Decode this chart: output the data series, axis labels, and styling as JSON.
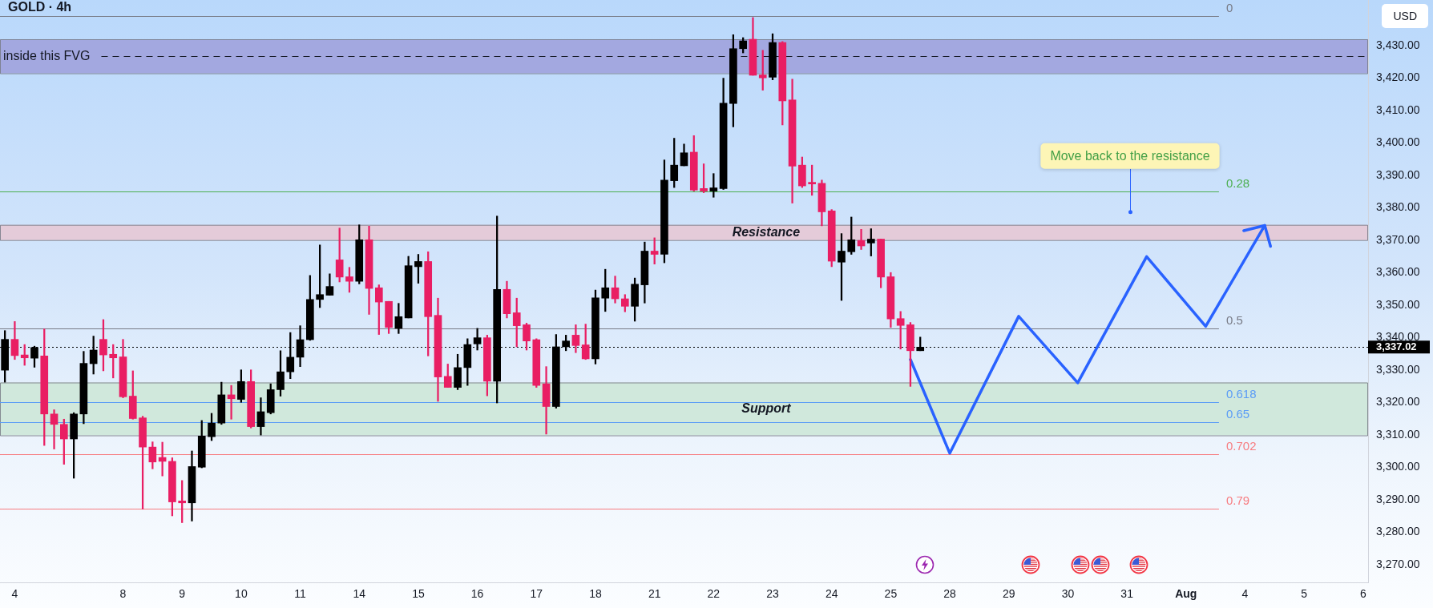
{
  "chart_data": {
    "type": "candlestick",
    "title": "GOLD · 4h",
    "ylabel": "USD",
    "categories": [
      null,
      "4",
      null,
      null,
      null,
      null,
      null,
      null,
      null,
      null,
      null,
      null,
      "8",
      null,
      null,
      null,
      null,
      null,
      "9",
      null,
      null,
      null,
      null,
      null,
      "10",
      null,
      null,
      null,
      null,
      null,
      "11",
      null,
      null,
      null,
      null,
      null,
      "14",
      null,
      null,
      null,
      null,
      null,
      "15",
      null,
      null,
      null,
      null,
      null,
      "16",
      null,
      null,
      null,
      null,
      null,
      "17",
      null,
      null,
      null,
      null,
      null,
      "18",
      null,
      null,
      null,
      null,
      null,
      "21",
      null,
      null,
      null,
      null,
      null,
      "22",
      null,
      null,
      null,
      null,
      null,
      "23",
      null,
      null,
      null,
      null,
      null,
      "24",
      null,
      null,
      null,
      null,
      null,
      "25",
      null,
      null,
      null,
      null,
      null,
      "28",
      null,
      null,
      null,
      null,
      null,
      "29",
      null,
      null,
      null,
      null,
      null,
      "30",
      null,
      null,
      null,
      null,
      null,
      "31",
      null,
      null,
      null,
      null,
      null,
      "Aug",
      null,
      null,
      null,
      null,
      null,
      "4",
      null,
      null,
      null,
      null,
      null,
      "5",
      null,
      null,
      null,
      null,
      null,
      "6"
    ],
    "ohlc": [
      [
        3329.9,
        3342.1,
        3326.2,
        3339.4
      ],
      [
        3339.4,
        3344.9,
        3333.2,
        3334.4
      ],
      [
        3334.6,
        3337.8,
        3331.4,
        3333.7
      ],
      [
        3333.6,
        3337.3,
        3330.8,
        3336.9
      ],
      [
        3334.3,
        3342.6,
        3306.7,
        3316.4
      ],
      [
        3316.4,
        3317.7,
        3305.6,
        3313.2
      ],
      [
        3313.2,
        3314.8,
        3300.9,
        3308.7
      ],
      [
        3308.7,
        3316.8,
        3296.6,
        3316.4
      ],
      [
        3316.4,
        3335.7,
        3313.4,
        3332.0
      ],
      [
        3331.9,
        3340.4,
        3328.7,
        3336.1
      ],
      [
        3339.4,
        3345.5,
        3329.7,
        3334.6
      ],
      [
        3334.8,
        3337.8,
        3327.5,
        3333.7
      ],
      [
        3334.0,
        3339.4,
        3321.4,
        3321.7
      ],
      [
        3321.9,
        3329.7,
        3314.8,
        3315.0
      ],
      [
        3315.2,
        3315.7,
        3287.1,
        3306.2
      ],
      [
        3306.2,
        3307.8,
        3299.5,
        3301.6
      ],
      [
        3303.0,
        3307.7,
        3297.3,
        3301.8
      ],
      [
        3301.8,
        3302.9,
        3285.0,
        3289.3
      ],
      [
        3289.6,
        3295.9,
        3282.9,
        3289.0
      ],
      [
        3289.0,
        3305.0,
        3283.4,
        3300.2
      ],
      [
        3300.0,
        3314.4,
        3299.8,
        3309.6
      ],
      [
        3309.4,
        3316.6,
        3308.2,
        3313.6
      ],
      [
        3313.6,
        3326.2,
        3313.2,
        3322.3
      ],
      [
        3322.3,
        3325.2,
        3314.8,
        3321.1
      ],
      [
        3320.9,
        3330.0,
        3320.0,
        3326.4
      ],
      [
        3326.4,
        3330.0,
        3312.1,
        3312.5
      ],
      [
        3312.5,
        3321.4,
        3309.9,
        3317.1
      ],
      [
        3316.8,
        3325.7,
        3316.4,
        3323.9
      ],
      [
        3323.9,
        3335.9,
        3321.9,
        3329.4
      ],
      [
        3329.4,
        3341.5,
        3327.3,
        3333.9
      ],
      [
        3333.9,
        3343.6,
        3331.0,
        3339.3
      ],
      [
        3339.3,
        3359.1,
        3339.1,
        3351.7
      ],
      [
        3351.7,
        3368.5,
        3349.2,
        3353.2
      ],
      [
        3353.0,
        3359.6,
        3353.0,
        3355.7
      ],
      [
        3363.9,
        3373.7,
        3357.1,
        3358.6
      ],
      [
        3358.7,
        3361.6,
        3353.9,
        3357.3
      ],
      [
        3357.3,
        3374.7,
        3356.5,
        3370.1
      ],
      [
        3370.1,
        3374.3,
        3347.1,
        3355.1
      ],
      [
        3355.3,
        3356.2,
        3340.9,
        3350.9
      ],
      [
        3351.1,
        3351.1,
        3341.2,
        3343.1
      ],
      [
        3342.8,
        3350.5,
        3341.2,
        3346.4
      ],
      [
        3346.0,
        3365.0,
        3346.0,
        3362.1
      ],
      [
        3361.8,
        3365.6,
        3356.7,
        3363.4
      ],
      [
        3363.4,
        3366.4,
        3334.3,
        3346.4
      ],
      [
        3346.8,
        3352.1,
        3320.3,
        3327.8
      ],
      [
        3328.0,
        3331.8,
        3324.6,
        3324.6
      ],
      [
        3324.6,
        3334.8,
        3323.9,
        3330.7
      ],
      [
        3330.7,
        3339.6,
        3325.2,
        3337.8
      ],
      [
        3338.0,
        3342.8,
        3336.1,
        3339.9
      ],
      [
        3339.9,
        3340.7,
        3322.0,
        3326.5
      ],
      [
        3326.5,
        3377.4,
        3319.8,
        3354.8
      ],
      [
        3354.8,
        3357.3,
        3346.0,
        3347.3
      ],
      [
        3347.6,
        3352.1,
        3337.1,
        3343.6
      ],
      [
        3343.9,
        3344.4,
        3336.1,
        3338.9
      ],
      [
        3339.3,
        3339.6,
        3324.6,
        3325.2
      ],
      [
        3325.7,
        3331.0,
        3310.2,
        3318.7
      ],
      [
        3318.7,
        3340.9,
        3318.2,
        3337.1
      ],
      [
        3337.1,
        3340.7,
        3335.9,
        3338.9
      ],
      [
        3340.7,
        3343.9,
        3335.3,
        3337.5
      ],
      [
        3337.7,
        3344.1,
        3333.2,
        3333.4
      ],
      [
        3333.4,
        3354.6,
        3331.8,
        3352.2
      ],
      [
        3352.1,
        3361.0,
        3348.0,
        3355.3
      ],
      [
        3355.3,
        3358.9,
        3350.6,
        3351.9
      ],
      [
        3351.9,
        3353.2,
        3347.9,
        3349.6
      ],
      [
        3349.6,
        3358.3,
        3345.0,
        3356.4
      ],
      [
        3356.2,
        3369.4,
        3350.6,
        3366.6
      ],
      [
        3366.6,
        3370.7,
        3362.6,
        3365.6
      ],
      [
        3365.6,
        3394.7,
        3363.0,
        3388.5
      ],
      [
        3388.3,
        3401.4,
        3386.2,
        3393.1
      ],
      [
        3392.9,
        3399.6,
        3392.9,
        3396.9
      ],
      [
        3397.1,
        3402.2,
        3385.1,
        3385.4
      ],
      [
        3385.9,
        3393.5,
        3384.6,
        3385.1
      ],
      [
        3385.1,
        3390.5,
        3383.2,
        3386.1
      ],
      [
        3385.9,
        3419.9,
        3385.6,
        3412.2
      ],
      [
        3412.1,
        3433.3,
        3404.9,
        3429.0
      ],
      [
        3429.0,
        3432.4,
        3427.7,
        3431.4
      ],
      [
        3431.9,
        3438.6,
        3420.8,
        3420.8
      ],
      [
        3420.9,
        3428.5,
        3416.2,
        3420.0
      ],
      [
        3420.2,
        3433.6,
        3419.4,
        3430.9
      ],
      [
        3430.9,
        3431.2,
        3405.5,
        3412.9
      ],
      [
        3413.2,
        3419.6,
        3381.4,
        3392.8
      ],
      [
        3393.1,
        3395.6,
        3386.2,
        3386.7
      ],
      [
        3387.8,
        3393.1,
        3383.8,
        3387.3
      ],
      [
        3387.5,
        3388.5,
        3374.4,
        3378.7
      ],
      [
        3379.0,
        3379.4,
        3361.8,
        3363.5
      ],
      [
        3363.2,
        3372.0,
        3351.4,
        3366.6
      ],
      [
        3366.4,
        3377.1,
        3365.6,
        3370.1
      ],
      [
        3369.9,
        3373.3,
        3367.1,
        3368.2
      ],
      [
        3369.1,
        3373.5,
        3365.1,
        3370.3
      ],
      [
        3370.3,
        3370.3,
        3355.3,
        3358.6
      ],
      [
        3358.7,
        3360.0,
        3343.1,
        3345.7
      ],
      [
        3345.8,
        3348.0,
        3336.4,
        3343.7
      ],
      [
        3343.9,
        3344.6,
        3324.9,
        3335.9
      ],
      [
        3335.9,
        3340.1,
        3335.9,
        3337.0
      ],
      null,
      null,
      null,
      null,
      null,
      null,
      null,
      null,
      null,
      null,
      null,
      null,
      null,
      null,
      null,
      null,
      null,
      null,
      null,
      null,
      null,
      null,
      null,
      null,
      null,
      null,
      null,
      null,
      null,
      null,
      null,
      null,
      null,
      null,
      null,
      null,
      null,
      null,
      null,
      null,
      null,
      null,
      null,
      null,
      null
    ],
    "colors": [
      "#000000",
      "#e91e63",
      "#e91e63",
      "#000000",
      "#e91e63",
      "#e91e63",
      "#e91e63",
      "#000000",
      "#000000",
      "#000000",
      "#e91e63",
      "#e91e63",
      "#e91e63",
      "#e91e63",
      "#e91e63",
      "#e91e63",
      "#e91e63",
      "#e91e63",
      "#e91e63",
      "#000000",
      "#000000",
      "#000000",
      "#000000",
      "#e91e63",
      "#000000",
      "#e91e63",
      "#000000",
      "#000000",
      "#000000",
      "#000000",
      "#000000",
      "#000000",
      "#000000",
      "#000000",
      "#e91e63",
      "#e91e63",
      "#000000",
      "#e91e63",
      "#e91e63",
      "#e91e63",
      "#000000",
      "#000000",
      "#000000",
      "#e91e63",
      "#e91e63",
      "#e91e63",
      "#000000",
      "#000000",
      "#000000",
      "#e91e63",
      "#000000",
      "#e91e63",
      "#e91e63",
      "#e91e63",
      "#e91e63",
      "#e91e63",
      "#000000",
      "#000000",
      "#e91e63",
      "#e91e63",
      "#000000",
      "#000000",
      "#e91e63",
      "#e91e63",
      "#000000",
      "#000000",
      "#e91e63",
      "#000000",
      "#000000",
      "#000000",
      "#e91e63",
      "#e91e63",
      "#000000",
      "#000000",
      "#000000",
      "#000000",
      "#e91e63",
      "#e91e63",
      "#000000",
      "#e91e63",
      "#e91e63",
      "#e91e63",
      "#e91e63",
      "#e91e63",
      "#e91e63",
      "#000000",
      "#000000",
      "#e91e63",
      "#000000",
      "#e91e63",
      "#e91e63",
      "#e91e63",
      "#e91e63",
      "#000000",
      null,
      null,
      null,
      null,
      null,
      null,
      null,
      null,
      null,
      null,
      null,
      null,
      null,
      null,
      null,
      null,
      null,
      null,
      null,
      null,
      null,
      null,
      null,
      null,
      null,
      null,
      null,
      null,
      null,
      null,
      null,
      null,
      null,
      null,
      null,
      null,
      null,
      null,
      null,
      null,
      null,
      null,
      null,
      null,
      null
    ],
    "series": [
      {
        "type": "line",
        "color": "#2962ff",
        "values": [
          null,
          null,
          null,
          null,
          null,
          null,
          null,
          null,
          null,
          null,
          null,
          null,
          null,
          null,
          null,
          null,
          null,
          null,
          null,
          null,
          null,
          null,
          null,
          null,
          null,
          null,
          null,
          null,
          null,
          null,
          null,
          null,
          null,
          null,
          null,
          null,
          null,
          null,
          null,
          null,
          null,
          null,
          null,
          null,
          null,
          null,
          null,
          null,
          null,
          null,
          null,
          null,
          null,
          null,
          null,
          null,
          null,
          null,
          null,
          null,
          null,
          null,
          null,
          null,
          null,
          null,
          null,
          null,
          null,
          null,
          null,
          null,
          null,
          null,
          null,
          null,
          null,
          null,
          null,
          null,
          null,
          null,
          null,
          null,
          null,
          null,
          null,
          null,
          null,
          null,
          null,
          null,
          3333.2,
          null,
          null,
          null,
          3304.3,
          null,
          null,
          null,
          null,
          null,
          null,
          3346.5,
          null,
          null,
          null,
          null,
          null,
          3326,
          null,
          null,
          null,
          null,
          null,
          null,
          3364.9,
          null,
          null,
          null,
          null,
          null,
          3343.4,
          null,
          null,
          null,
          null,
          null,
          3374.5,
          null,
          null,
          null,
          null,
          null,
          null,
          null,
          null,
          null,
          null
        ]
      }
    ],
    "marker": "none",
    "ylim": [
      3264.5,
      3444
    ],
    "yticks": [
      {
        "value": 3270,
        "label": "3,270.00"
      },
      {
        "value": 3280,
        "label": "3,280.00"
      },
      {
        "value": 3290,
        "label": "3,290.00"
      },
      {
        "value": 3300,
        "label": "3,300.00"
      },
      {
        "value": 3310,
        "label": "3,310.00"
      },
      {
        "value": 3320,
        "label": "3,320.00"
      },
      {
        "value": 3330,
        "label": "3,330.00"
      },
      {
        "value": 3340,
        "label": "3,340.00"
      },
      {
        "value": 3350,
        "label": "3,350.00"
      },
      {
        "value": 3360,
        "label": "3,360.00"
      },
      {
        "value": 3370,
        "label": "3,370.00"
      },
      {
        "value": 3380,
        "label": "3,380.00"
      },
      {
        "value": 3390,
        "label": "3,390.00"
      },
      {
        "value": 3400,
        "label": "3,400.00"
      },
      {
        "value": 3410,
        "label": "3,410.00"
      },
      {
        "value": 3420,
        "label": "3,420.00"
      },
      {
        "value": 3430,
        "label": "3,430.00"
      }
    ],
    "bands": [
      {
        "axis": "y",
        "from": 3421.4,
        "to": 3431.9,
        "color": "#a3a8e0"
      },
      {
        "axis": "y",
        "from": 3370,
        "to": 3374.7,
        "label": "Resistance",
        "color": "#e4cbd9"
      },
      {
        "axis": "y",
        "from": 3309.8,
        "to": 3326.1,
        "label": "Support",
        "color": "#d0e8dc"
      }
    ],
    "ref_lines": [
      {
        "axis": "y",
        "value": 3439,
        "color": "#787b86",
        "line_style": "solid"
      },
      {
        "axis": "y",
        "value": 3385,
        "color": "#4caf50",
        "line_style": "solid"
      },
      {
        "axis": "y",
        "value": 3342.8,
        "color": "#787b86",
        "line_style": "solid"
      },
      {
        "axis": "y",
        "value": 3320.1,
        "color": "#5b9cf6",
        "line_style": "solid"
      },
      {
        "axis": "y",
        "value": 3314,
        "color": "#5b9cf6",
        "line_style": "solid"
      },
      {
        "axis": "y",
        "value": 3304,
        "color": "#f77c80",
        "line_style": "solid"
      },
      {
        "axis": "y",
        "value": 3287.1,
        "color": "#f77c80",
        "line_style": "solid"
      },
      {
        "axis": "y",
        "value": 3426.7,
        "label": "inside this FVG",
        "color": "#131722",
        "line_style": "dashed"
      },
      {
        "axis": "y",
        "value": 3337.02,
        "label": "3,337.02",
        "color": "#000000",
        "line_style": "dotted"
      }
    ],
    "annotations": [
      "Move back to the resistance",
      "0",
      "0.28",
      "0.5",
      "0.618",
      "0.65",
      "0.702",
      "0.79"
    ]
  }
}
